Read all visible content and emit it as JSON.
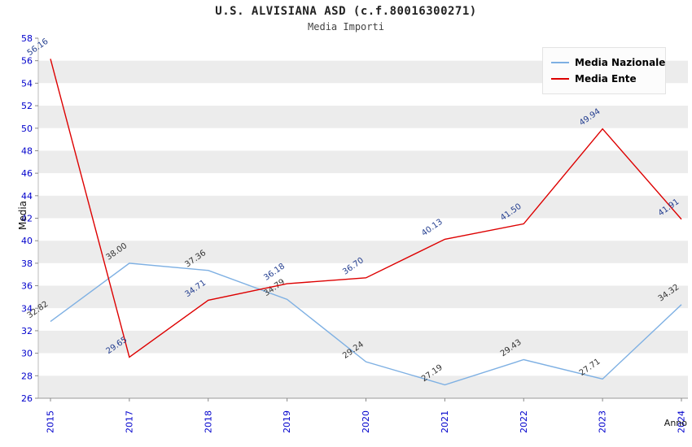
{
  "header": {
    "title": "U.S. ALVISIANA ASD (c.f.80016300271)",
    "subtitle": "Media Importi"
  },
  "chart_data": {
    "type": "line",
    "title": "U.S. ALVISIANA ASD (c.f.80016300271)",
    "subtitle": "Media Importi",
    "xlabel": "Anno",
    "ylabel": "Media",
    "ylim": [
      26,
      58
    ],
    "ytick_step": 2,
    "grid": "alternating-horizontal-bands",
    "legend_position": "top-right",
    "tick_label_color": "#0000cc",
    "categories": [
      "2015",
      "2017",
      "2018",
      "2019",
      "2020",
      "2021",
      "2022",
      "2023",
      "2024"
    ],
    "series": [
      {
        "name": "Media Nazionale",
        "color": "#7eb0e3",
        "label_color": "#333333",
        "values": [
          32.82,
          38.0,
          37.36,
          34.79,
          29.24,
          27.19,
          29.43,
          27.71,
          34.32
        ]
      },
      {
        "name": "Media Ente",
        "color": "#dd0000",
        "label_color": "#223d8f",
        "values": [
          56.16,
          29.65,
          34.71,
          36.18,
          36.7,
          40.13,
          41.5,
          49.94,
          41.91
        ]
      }
    ]
  }
}
